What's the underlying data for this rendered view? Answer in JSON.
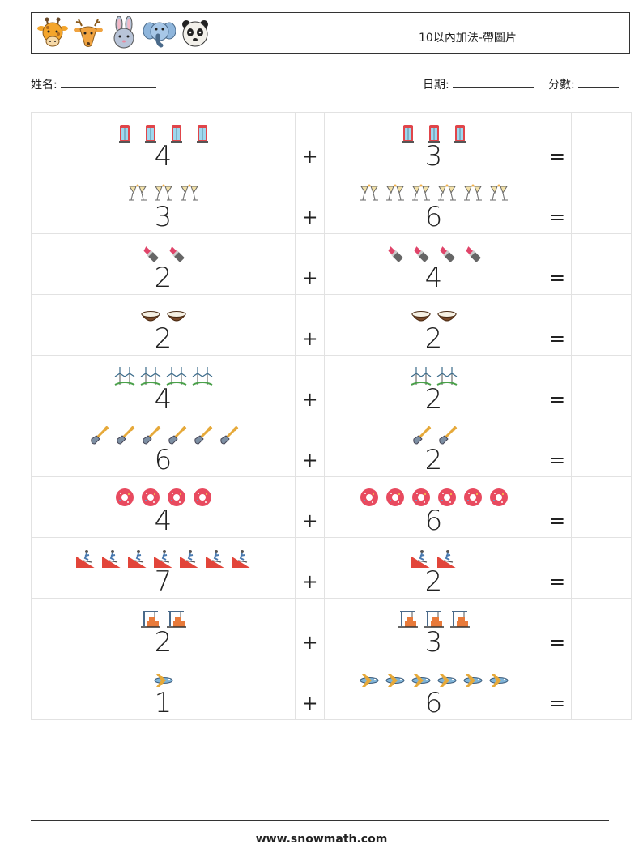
{
  "header": {
    "title": "10以內加法-帶圖片",
    "animals": [
      "giraffe-icon",
      "deer-icon",
      "rabbit-icon",
      "elephant-icon",
      "panda-icon"
    ]
  },
  "meta": {
    "name_label": "姓名:",
    "date_label": "日期:",
    "score_label": "分數:"
  },
  "problems": [
    {
      "a": "4",
      "a_icon": "phone-booth",
      "op": "+",
      "b": "3",
      "b_icon": "phone-booth",
      "eq": "="
    },
    {
      "a": "3",
      "a_icon": "champagne-glasses",
      "op": "+",
      "b": "6",
      "b_icon": "champagne-glasses",
      "eq": "="
    },
    {
      "a": "2",
      "a_icon": "lipstick",
      "op": "+",
      "b": "4",
      "b_icon": "lipstick",
      "eq": "="
    },
    {
      "a": "2",
      "a_icon": "coconut",
      "op": "+",
      "b": "2",
      "b_icon": "coconut",
      "eq": "="
    },
    {
      "a": "4",
      "a_icon": "wind-turbines",
      "op": "+",
      "b": "2",
      "b_icon": "wind-turbines",
      "eq": "="
    },
    {
      "a": "6",
      "a_icon": "shovel",
      "op": "+",
      "b": "2",
      "b_icon": "shovel",
      "eq": "="
    },
    {
      "a": "4",
      "a_icon": "donut",
      "op": "+",
      "b": "6",
      "b_icon": "donut",
      "eq": "="
    },
    {
      "a": "7",
      "a_icon": "ski-slope",
      "op": "+",
      "b": "2",
      "b_icon": "ski-slope",
      "eq": "="
    },
    {
      "a": "2",
      "a_icon": "crane-factory",
      "op": "+",
      "b": "3",
      "b_icon": "crane-factory",
      "eq": "="
    },
    {
      "a": "1",
      "a_icon": "airplane",
      "op": "+",
      "b": "6",
      "b_icon": "airplane",
      "eq": "="
    }
  ],
  "footer": {
    "url": "www.snowmath.com"
  },
  "colors": {
    "border": "#e2e2e2",
    "text": "#222222"
  }
}
